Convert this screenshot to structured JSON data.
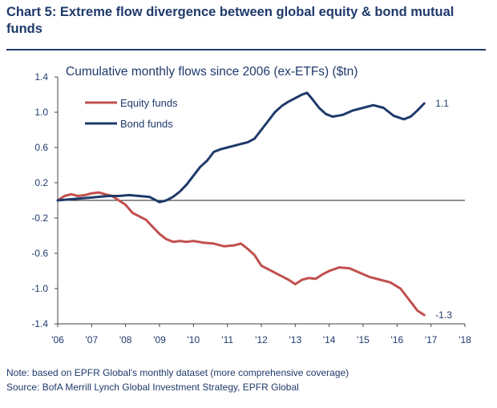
{
  "header": {
    "title": "Chart 5: Extreme flow divergence between global equity & bond mutual funds"
  },
  "footer": {
    "note": "Note: based on EPFR Global's monthly dataset (more comprehensive coverage)",
    "source": "Source: BofA Merrill Lynch Global Investment Strategy, EPFR Global"
  },
  "colors": {
    "equity": "#c0504d",
    "bond": "#1f3a6b",
    "text": "#1f3a6b"
  },
  "chart_data": {
    "type": "line",
    "title": "Cumulative monthly flows since 2006 (ex-ETFs) ($tn)",
    "xlabel": "",
    "ylabel": "",
    "xlim": [
      2006,
      2018
    ],
    "ylim": [
      -1.4,
      1.4
    ],
    "x_ticks": [
      "'06",
      "'07",
      "'08",
      "'09",
      "'10",
      "'11",
      "'12",
      "'13",
      "'14",
      "'15",
      "'16",
      "'17",
      "'18"
    ],
    "y_ticks": [
      "1.4",
      "1.0",
      "0.6",
      "0.2",
      "-0.2",
      "-0.6",
      "-1.0",
      "-1.4"
    ],
    "y_tick_values": [
      1.4,
      1.0,
      0.6,
      0.2,
      -0.2,
      -0.6,
      -1.0,
      -1.4
    ],
    "zero_line": true,
    "legend": "top-left",
    "series": [
      {
        "name": "Equity funds",
        "end_label": "-1.3",
        "x": [
          2006.0,
          2006.2,
          2006.4,
          2006.6,
          2006.8,
          2007.0,
          2007.2,
          2007.4,
          2007.6,
          2007.8,
          2008.0,
          2008.2,
          2008.4,
          2008.6,
          2008.8,
          2009.0,
          2009.2,
          2009.4,
          2009.6,
          2009.8,
          2010.0,
          2010.3,
          2010.6,
          2010.9,
          2011.2,
          2011.4,
          2011.6,
          2011.8,
          2012.0,
          2012.2,
          2012.4,
          2012.6,
          2012.8,
          2013.0,
          2013.2,
          2013.4,
          2013.6,
          2013.8,
          2014.0,
          2014.3,
          2014.6,
          2014.9,
          2015.2,
          2015.5,
          2015.8,
          2016.1,
          2016.4,
          2016.6,
          2016.8
        ],
        "values": [
          0.0,
          0.05,
          0.07,
          0.05,
          0.06,
          0.08,
          0.09,
          0.07,
          0.05,
          0.0,
          -0.05,
          -0.14,
          -0.18,
          -0.22,
          -0.3,
          -0.38,
          -0.44,
          -0.47,
          -0.46,
          -0.47,
          -0.46,
          -0.48,
          -0.49,
          -0.52,
          -0.51,
          -0.49,
          -0.55,
          -0.62,
          -0.74,
          -0.78,
          -0.82,
          -0.86,
          -0.9,
          -0.95,
          -0.9,
          -0.88,
          -0.89,
          -0.84,
          -0.8,
          -0.76,
          -0.77,
          -0.82,
          -0.87,
          -0.9,
          -0.93,
          -1.0,
          -1.15,
          -1.25,
          -1.3
        ]
      },
      {
        "name": "Bond funds",
        "end_label": "1.1",
        "x": [
          2006.0,
          2006.3,
          2006.6,
          2006.9,
          2007.2,
          2007.5,
          2007.8,
          2008.1,
          2008.4,
          2008.7,
          2008.9,
          2009.0,
          2009.2,
          2009.4,
          2009.6,
          2009.8,
          2010.0,
          2010.2,
          2010.4,
          2010.6,
          2010.8,
          2011.0,
          2011.2,
          2011.4,
          2011.6,
          2011.8,
          2012.0,
          2012.2,
          2012.4,
          2012.6,
          2012.8,
          2013.0,
          2013.2,
          2013.35,
          2013.5,
          2013.7,
          2013.9,
          2014.1,
          2014.4,
          2014.7,
          2015.0,
          2015.3,
          2015.6,
          2015.9,
          2016.2,
          2016.4,
          2016.6,
          2016.8
        ],
        "values": [
          0.0,
          0.01,
          0.02,
          0.03,
          0.04,
          0.05,
          0.05,
          0.06,
          0.05,
          0.04,
          0.0,
          -0.02,
          0.0,
          0.04,
          0.1,
          0.18,
          0.28,
          0.38,
          0.45,
          0.55,
          0.58,
          0.6,
          0.62,
          0.64,
          0.66,
          0.7,
          0.8,
          0.9,
          1.0,
          1.07,
          1.12,
          1.16,
          1.2,
          1.22,
          1.15,
          1.05,
          0.98,
          0.95,
          0.97,
          1.02,
          1.05,
          1.08,
          1.05,
          0.96,
          0.92,
          0.95,
          1.02,
          1.1
        ]
      }
    ]
  }
}
